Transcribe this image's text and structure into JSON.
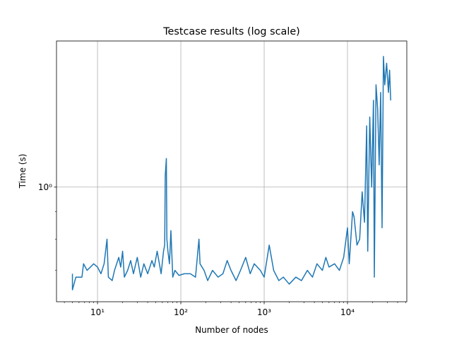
{
  "chart_data": {
    "type": "line",
    "title": "Testcase results (log scale)",
    "xlabel": "Number of nodes",
    "ylabel": "Time (s)",
    "xscale": "log",
    "yscale": "log",
    "grid": true,
    "color": "#1f77b4",
    "xlim": [
      3.22,
      51500
    ],
    "ylim": [
      0.612,
      1.87
    ],
    "xticks": [
      {
        "value": 10,
        "label": "10¹"
      },
      {
        "value": 100,
        "label": "10²"
      },
      {
        "value": 1000,
        "label": "10³"
      },
      {
        "value": 10000,
        "label": "10⁴"
      }
    ],
    "xminorticks": [
      4,
      5,
      6,
      7,
      8,
      9,
      20,
      30,
      40,
      50,
      60,
      70,
      80,
      90,
      200,
      300,
      400,
      500,
      600,
      700,
      800,
      900,
      2000,
      3000,
      4000,
      5000,
      6000,
      7000,
      8000,
      9000,
      20000,
      30000,
      40000,
      50000
    ],
    "yticks": [
      {
        "value": 1,
        "label": "10⁰"
      }
    ],
    "yminorticks": [
      0.7,
      0.8,
      0.9
    ],
    "x": [
      5,
      5,
      5.5,
      6.5,
      6.8,
      7.5,
      9,
      10,
      11,
      12,
      13,
      13.5,
      15,
      16,
      18,
      19,
      20,
      21,
      23,
      25,
      27,
      30,
      33,
      36,
      40,
      45,
      48,
      52,
      58,
      62,
      64,
      65,
      67,
      68,
      70,
      73,
      76,
      80,
      85,
      95,
      110,
      130,
      150,
      165,
      170,
      190,
      210,
      240,
      280,
      320,
      360,
      400,
      460,
      520,
      600,
      680,
      760,
      900,
      1000,
      1150,
      1300,
      1500,
      1700,
      2000,
      2400,
      2800,
      3300,
      3800,
      4300,
      5000,
      5500,
      6000,
      7000,
      8000,
      9000,
      10000,
      10500,
      11500,
      12000,
      13000,
      14000,
      15000,
      16000,
      17000,
      17500,
      18500,
      19500,
      20500,
      21000,
      22000,
      23000,
      24000,
      25000,
      26000,
      27000,
      28000,
      29500,
      31000,
      32000,
      33000
    ],
    "values": [
      0.69,
      0.644,
      0.68,
      0.68,
      0.72,
      0.7,
      0.72,
      0.71,
      0.69,
      0.72,
      0.8,
      0.68,
      0.67,
      0.7,
      0.74,
      0.71,
      0.76,
      0.68,
      0.7,
      0.73,
      0.69,
      0.74,
      0.68,
      0.72,
      0.69,
      0.73,
      0.71,
      0.76,
      0.69,
      0.76,
      0.78,
      1.05,
      1.13,
      0.8,
      0.76,
      0.72,
      0.83,
      0.68,
      0.7,
      0.685,
      0.69,
      0.69,
      0.68,
      0.8,
      0.72,
      0.7,
      0.67,
      0.7,
      0.68,
      0.69,
      0.73,
      0.7,
      0.67,
      0.7,
      0.74,
      0.69,
      0.72,
      0.7,
      0.68,
      0.78,
      0.7,
      0.67,
      0.68,
      0.66,
      0.68,
      0.67,
      0.7,
      0.68,
      0.72,
      0.7,
      0.74,
      0.71,
      0.72,
      0.7,
      0.74,
      0.84,
      0.72,
      0.9,
      0.88,
      0.78,
      0.8,
      0.98,
      0.86,
      1.3,
      0.76,
      1.35,
      1.0,
      1.45,
      0.68,
      1.55,
      1.4,
      1.1,
      1.5,
      0.84,
      1.75,
      1.55,
      1.7,
      1.5,
      1.65,
      1.45
    ]
  }
}
